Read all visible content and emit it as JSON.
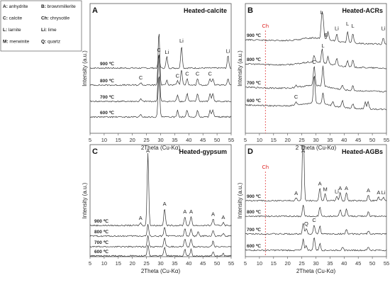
{
  "legend": [
    {
      "key": "A",
      "name": "anhydrite"
    },
    {
      "key": "B",
      "name": "brownmillerite"
    },
    {
      "key": "C",
      "name": "calcite"
    },
    {
      "key": "Ch",
      "name": "chrysotile"
    },
    {
      "key": "L",
      "name": "larnite"
    },
    {
      "key": "Li",
      "name": "lime"
    },
    {
      "key": "M",
      "name": "merwinite"
    },
    {
      "key": "Q",
      "name": "quartz"
    }
  ],
  "chart_data": [
    {
      "type": "line",
      "letter": "A",
      "title": "Heated-calcite",
      "xlabel": "2Theta (Cu-Kα)",
      "ylabel": "Intensity (a.u.)",
      "xlim": [
        5,
        55
      ],
      "xticks": [
        5,
        10,
        15,
        20,
        25,
        30,
        35,
        40,
        45,
        50,
        55
      ],
      "series": [
        {
          "name": "900 ℃",
          "peaks": [
            [
              29.4,
              0.6
            ],
            [
              32.2,
              0.5
            ],
            [
              37.4,
              1.0
            ],
            [
              53.9,
              0.55
            ]
          ]
        },
        {
          "name": "800 ℃",
          "peaks": [
            [
              23.0,
              0.12
            ],
            [
              29.4,
              2.4
            ],
            [
              32.2,
              0.25
            ],
            [
              36.0,
              0.2
            ],
            [
              37.4,
              0.7
            ],
            [
              39.4,
              0.3
            ],
            [
              43.1,
              0.3
            ],
            [
              47.5,
              0.3
            ],
            [
              48.5,
              0.3
            ],
            [
              53.9,
              0.3
            ]
          ]
        },
        {
          "name": "700 ℃",
          "peaks": [
            [
              23.0,
              0.1
            ],
            [
              29.4,
              2.2
            ],
            [
              36.0,
              0.3
            ],
            [
              39.4,
              0.35
            ],
            [
              43.1,
              0.35
            ],
            [
              47.5,
              0.35
            ],
            [
              48.5,
              0.35
            ]
          ]
        },
        {
          "name": "600 ℃",
          "peaks": [
            [
              23.0,
              0.1
            ],
            [
              29.4,
              1.9
            ],
            [
              36.0,
              0.3
            ],
            [
              39.4,
              0.3
            ],
            [
              43.1,
              0.3
            ],
            [
              47.5,
              0.3
            ],
            [
              48.5,
              0.3
            ]
          ]
        }
      ],
      "annotations": [
        {
          "text": "C",
          "x": 29.4,
          "row": 0
        },
        {
          "text": "Li",
          "x": 32.2,
          "row": 0
        },
        {
          "text": "Li",
          "x": 37.4,
          "row": 0
        },
        {
          "text": "Li",
          "x": 53.9,
          "row": 0
        },
        {
          "text": "C",
          "x": 23.0,
          "row": 1
        },
        {
          "text": "C",
          "x": 36.0,
          "row": 1
        },
        {
          "text": "C",
          "x": 39.4,
          "row": 1
        },
        {
          "text": "C",
          "x": 43.1,
          "row": 1
        },
        {
          "text": "C",
          "x": 47.5,
          "row": 1
        }
      ]
    },
    {
      "type": "line",
      "letter": "B",
      "title": "Heated-ACRs",
      "xlabel": "2 Theta (Cu-Kα)",
      "ylabel": "Intensity (a.u.)",
      "xlim": [
        5,
        55
      ],
      "xticks": [
        5,
        10,
        15,
        20,
        25,
        30,
        35,
        40,
        45,
        50,
        55
      ],
      "ref_line": {
        "label": "Ch",
        "x": 12.1
      },
      "series": [
        {
          "name": "900 ℃",
          "peaks": [
            [
              32.1,
              1.0
            ],
            [
              32.6,
              0.7
            ],
            [
              34.3,
              0.35
            ],
            [
              37.4,
              0.3
            ],
            [
              41.2,
              0.5
            ],
            [
              43.1,
              0.4
            ],
            [
              53.9,
              0.3
            ]
          ]
        },
        {
          "name": "800 ℃",
          "peaks": [
            [
              29.4,
              0.3
            ],
            [
              32.2,
              0.6
            ],
            [
              34.3,
              0.3
            ],
            [
              37.4,
              0.3
            ],
            [
              41.2,
              0.3
            ],
            [
              43.1,
              0.3
            ]
          ]
        },
        {
          "name": "700 ℃",
          "peaks": [
            [
              23.0,
              0.1
            ],
            [
              29.4,
              0.9
            ],
            [
              32.5,
              0.9
            ],
            [
              39.4,
              0.2
            ],
            [
              43.1,
              0.2
            ]
          ]
        },
        {
          "name": "600 ℃",
          "peaks": [
            [
              23.0,
              0.15
            ],
            [
              29.4,
              1.3
            ],
            [
              32.5,
              0.5
            ],
            [
              36.0,
              0.2
            ],
            [
              39.4,
              0.3
            ],
            [
              43.1,
              0.2
            ],
            [
              47.5,
              0.3
            ],
            [
              48.5,
              0.3
            ]
          ]
        }
      ],
      "annotations": [
        {
          "text": "L",
          "x": 32.1,
          "row": 0
        },
        {
          "text": "B",
          "x": 33.6,
          "row": 0
        },
        {
          "text": "Li",
          "x": 37.4,
          "row": 0
        },
        {
          "text": "L",
          "x": 41.2,
          "row": 0
        },
        {
          "text": "L",
          "x": 43.1,
          "row": 0
        },
        {
          "text": "Li",
          "x": 53.9,
          "row": 0
        },
        {
          "text": "L",
          "x": 32.5,
          "row": 1
        },
        {
          "text": "C",
          "x": 29.4,
          "row": 2
        },
        {
          "text": "C",
          "x": 23.0,
          "row": 3
        }
      ]
    },
    {
      "type": "line",
      "letter": "C",
      "title": "Heated-gypsum",
      "xlabel": "2Theta (Cu-Kα)",
      "ylabel": "Intensity (a.u.)",
      "xlim": [
        5,
        55
      ],
      "xticks": [
        5,
        10,
        15,
        20,
        25,
        30,
        35,
        40,
        45,
        50,
        55
      ],
      "series": [
        {
          "name": "900 ℃",
          "peaks": [
            [
              22.9,
              0.12
            ],
            [
              25.5,
              3.2
            ],
            [
              31.4,
              0.75
            ],
            [
              38.6,
              0.4
            ],
            [
              40.8,
              0.4
            ],
            [
              48.6,
              0.3
            ],
            [
              52.2,
              0.15
            ]
          ]
        },
        {
          "name": "800 ℃",
          "peaks": [
            [
              25.5,
              0.5
            ],
            [
              31.4,
              0.4
            ],
            [
              38.6,
              0.35
            ],
            [
              40.8,
              0.3
            ],
            [
              43.3,
              0.2
            ],
            [
              48.6,
              0.25
            ],
            [
              52.2,
              0.1
            ]
          ]
        },
        {
          "name": "700 ℃",
          "peaks": [
            [
              25.5,
              0.5
            ],
            [
              31.4,
              0.4
            ],
            [
              38.6,
              0.35
            ],
            [
              40.8,
              0.35
            ],
            [
              48.6,
              0.25
            ]
          ]
        },
        {
          "name": "600 ℃",
          "peaks": [
            [
              25.5,
              0.5
            ],
            [
              31.4,
              0.4
            ],
            [
              38.6,
              0.3
            ],
            [
              40.8,
              0.3
            ],
            [
              48.6,
              0.2
            ],
            [
              52.2,
              0.1
            ]
          ]
        }
      ],
      "annotations": [
        {
          "text": "A",
          "x": 25.5,
          "row": 0
        },
        {
          "text": "A",
          "x": 31.4,
          "row": 0
        },
        {
          "text": "A",
          "x": 38.6,
          "row": 0
        },
        {
          "text": "A",
          "x": 40.8,
          "row": 0
        },
        {
          "text": "A",
          "x": 48.6,
          "row": 0
        },
        {
          "text": "A",
          "x": 22.9,
          "row": 0
        },
        {
          "text": "A",
          "x": 52.2,
          "row": 0
        }
      ]
    },
    {
      "type": "line",
      "letter": "D",
      "title": "Heated-AGBs",
      "xlabel": "2Theta (Cu-Kα)",
      "ylabel": "Intensity (a.u.)",
      "xlim": [
        5,
        55
      ],
      "xticks": [
        5,
        10,
        15,
        20,
        25,
        30,
        35,
        40,
        45,
        50,
        55
      ],
      "ref_line": {
        "label": "Ch",
        "x": 12.1
      },
      "series": [
        {
          "name": "900 ℃",
          "peaks": [
            [
              23.0,
              0.12
            ],
            [
              25.5,
              3.6
            ],
            [
              31.4,
              0.55
            ],
            [
              33.3,
              0.3
            ],
            [
              37.4,
              0.2
            ],
            [
              38.6,
              0.35
            ],
            [
              40.8,
              0.35
            ],
            [
              48.6,
              0.25
            ],
            [
              52.2,
              0.15
            ],
            [
              53.9,
              0.15
            ]
          ]
        },
        {
          "name": "800 ℃",
          "peaks": [
            [
              25.5,
              0.5
            ],
            [
              31.4,
              0.4
            ],
            [
              38.6,
              0.3
            ],
            [
              40.8,
              0.3
            ],
            [
              48.6,
              0.2
            ]
          ]
        },
        {
          "name": "700 ℃",
          "peaks": [
            [
              25.5,
              0.5
            ],
            [
              26.6,
              0.25
            ],
            [
              29.4,
              0.4
            ],
            [
              31.4,
              0.35
            ],
            [
              40.8,
              0.2
            ],
            [
              48.6,
              0.15
            ]
          ]
        },
        {
          "name": "600 ℃",
          "peaks": [
            [
              25.5,
              0.5
            ],
            [
              26.6,
              0.2
            ],
            [
              29.4,
              0.6
            ],
            [
              31.4,
              0.3
            ],
            [
              39.4,
              0.15
            ],
            [
              48.6,
              0.15
            ]
          ]
        }
      ],
      "annotations": [
        {
          "text": "A",
          "x": 25.5,
          "row": 0
        },
        {
          "text": "A",
          "x": 31.4,
          "row": 0
        },
        {
          "text": "M",
          "x": 33.3,
          "row": 0
        },
        {
          "text": "A",
          "x": 23.0,
          "row": 0
        },
        {
          "text": "Li",
          "x": 37.4,
          "row": 0
        },
        {
          "text": "A",
          "x": 38.6,
          "row": 0
        },
        {
          "text": "A",
          "x": 40.8,
          "row": 0
        },
        {
          "text": "A",
          "x": 48.6,
          "row": 0
        },
        {
          "text": "A",
          "x": 52.2,
          "row": 0
        },
        {
          "text": "Li",
          "x": 53.9,
          "row": 0
        },
        {
          "text": "Q",
          "x": 26.6,
          "row": 2
        },
        {
          "text": "C",
          "x": 29.4,
          "row": 2
        }
      ]
    }
  ]
}
